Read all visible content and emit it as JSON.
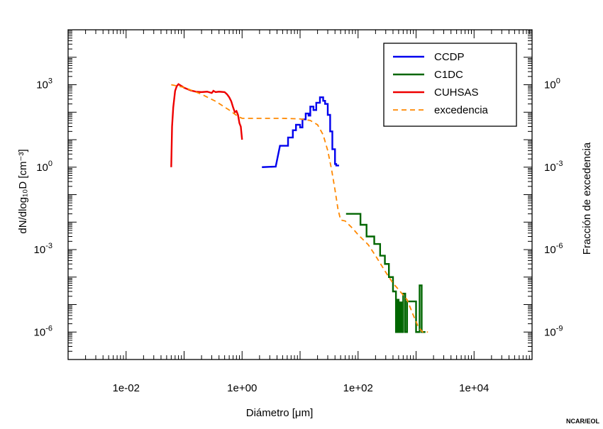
{
  "chart_data": {
    "type": "line",
    "xlabel": "Diámetro [μm]",
    "ylabel": "dN/dlog₁₀D [cm⁻³]",
    "y2label": "Fracción de excedencia",
    "credit": "NCAR/EOL",
    "x_scale": "log",
    "y_scale": "log",
    "y2_scale": "log",
    "xlim": [
      0.001,
      100000
    ],
    "ylim": [
      1e-07,
      100000
    ],
    "y2lim": [
      1e-10,
      100
    ],
    "x_ticks": [
      {
        "value": 0.01,
        "label": "1e-02"
      },
      {
        "value": 1,
        "label": "1e+00"
      },
      {
        "value": 100,
        "label": "1e+02"
      },
      {
        "value": 10000,
        "label": "1e+04"
      }
    ],
    "y_ticks": [
      {
        "base": "10",
        "exp": "3",
        "value": 1000
      },
      {
        "base": "10",
        "exp": "0",
        "value": 1
      },
      {
        "base": "10",
        "exp": "-3",
        "value": 0.001
      },
      {
        "base": "10",
        "exp": "-6",
        "value": 1e-06
      }
    ],
    "y2_ticks": [
      {
        "base": "10",
        "exp": "0",
        "value": 1
      },
      {
        "base": "10",
        "exp": "-3",
        "value": 0.001
      },
      {
        "base": "10",
        "exp": "-6",
        "value": 1e-06
      },
      {
        "base": "10",
        "exp": "-9",
        "value": 1e-09
      }
    ],
    "legend_position": "top-right",
    "series": [
      {
        "name": "CCDP",
        "color": "#0000ee",
        "axis": "left",
        "step": true,
        "points": [
          [
            2.2,
            1
          ],
          [
            3.8,
            1.05
          ],
          [
            4.5,
            6
          ],
          [
            6.2,
            6
          ],
          [
            6.2,
            12
          ],
          [
            7.5,
            12
          ],
          [
            7.5,
            22
          ],
          [
            8.5,
            22
          ],
          [
            8.5,
            35
          ],
          [
            10,
            35
          ],
          [
            10,
            28
          ],
          [
            11,
            28
          ],
          [
            11,
            55
          ],
          [
            12.5,
            55
          ],
          [
            12.5,
            90
          ],
          [
            14,
            90
          ],
          [
            14,
            75
          ],
          [
            15,
            75
          ],
          [
            15,
            160
          ],
          [
            17,
            160
          ],
          [
            17,
            120
          ],
          [
            19,
            120
          ],
          [
            19,
            220
          ],
          [
            22,
            220
          ],
          [
            22,
            350
          ],
          [
            25,
            350
          ],
          [
            25,
            260
          ],
          [
            27,
            260
          ],
          [
            27,
            200
          ],
          [
            30,
            200
          ],
          [
            30,
            80
          ],
          [
            33,
            80
          ],
          [
            33,
            20
          ],
          [
            36,
            20
          ],
          [
            36,
            4.5
          ],
          [
            40,
            4.5
          ],
          [
            40,
            1.3
          ],
          [
            42,
            1.3
          ],
          [
            42,
            1.15
          ],
          [
            47,
            1.15
          ]
        ]
      },
      {
        "name": "C1DC",
        "color": "#006600",
        "axis": "left",
        "step": true,
        "points": [
          [
            62,
            0.02
          ],
          [
            110,
            0.02
          ],
          [
            110,
            0.008
          ],
          [
            140,
            0.008
          ],
          [
            140,
            0.003
          ],
          [
            190,
            0.003
          ],
          [
            190,
            0.0016
          ],
          [
            240,
            0.0016
          ],
          [
            240,
            0.0006
          ],
          [
            290,
            0.0006
          ],
          [
            290,
            0.0003
          ],
          [
            340,
            0.0003
          ],
          [
            340,
            0.0001
          ],
          [
            400,
            0.0001
          ],
          [
            400,
            3e-05
          ],
          [
            450,
            3e-05
          ],
          [
            450,
            1e-06
          ],
          [
            470,
            1e-06
          ],
          [
            470,
            1.5e-05
          ],
          [
            500,
            1.5e-05
          ],
          [
            500,
            1e-06
          ],
          [
            530,
            1e-06
          ],
          [
            530,
            1.2e-05
          ],
          [
            560,
            1.2e-05
          ],
          [
            560,
            1e-06
          ],
          [
            600,
            1e-06
          ],
          [
            600,
            2.5e-05
          ],
          [
            650,
            2.5e-05
          ],
          [
            650,
            1e-06
          ],
          [
            700,
            1e-06
          ],
          [
            700,
            1.3e-05
          ],
          [
            1000,
            1.3e-05
          ],
          [
            1000,
            1e-06
          ],
          [
            1150,
            1e-06
          ],
          [
            1150,
            5e-05
          ],
          [
            1250,
            5e-05
          ],
          [
            1250,
            1e-06
          ],
          [
            1450,
            1e-06
          ]
        ]
      },
      {
        "name": "CUHSAS",
        "color": "#ee0000",
        "axis": "left",
        "step": false,
        "points": [
          [
            0.06,
            1
          ],
          [
            0.062,
            30
          ],
          [
            0.065,
            150
          ],
          [
            0.07,
            600
          ],
          [
            0.075,
            900
          ],
          [
            0.08,
            1050
          ],
          [
            0.09,
            900
          ],
          [
            0.1,
            780
          ],
          [
            0.13,
            620
          ],
          [
            0.16,
            560
          ],
          [
            0.2,
            540
          ],
          [
            0.25,
            560
          ],
          [
            0.3,
            500
          ],
          [
            0.32,
            600
          ],
          [
            0.35,
            540
          ],
          [
            0.4,
            560
          ],
          [
            0.5,
            540
          ],
          [
            0.55,
            450
          ],
          [
            0.6,
            350
          ],
          [
            0.65,
            250
          ],
          [
            0.7,
            150
          ],
          [
            0.75,
            100
          ],
          [
            0.8,
            110
          ],
          [
            0.85,
            80
          ],
          [
            0.9,
            40
          ],
          [
            0.95,
            30
          ],
          [
            1.0,
            10
          ]
        ]
      },
      {
        "name": "excedencia",
        "color": "#ff8800",
        "axis": "right",
        "dashed": true,
        "step": false,
        "points": [
          [
            0.06,
            1
          ],
          [
            0.1,
            0.8
          ],
          [
            0.2,
            0.45
          ],
          [
            0.35,
            0.25
          ],
          [
            0.6,
            0.12
          ],
          [
            0.85,
            0.07
          ],
          [
            1,
            0.06
          ],
          [
            2,
            0.06
          ],
          [
            5,
            0.06
          ],
          [
            10,
            0.057
          ],
          [
            15,
            0.05
          ],
          [
            20,
            0.035
          ],
          [
            25,
            0.015
          ],
          [
            30,
            0.004
          ],
          [
            35,
            0.0008
          ],
          [
            40,
            0.00015
          ],
          [
            45,
            3e-05
          ],
          [
            50,
            1.2e-05
          ],
          [
            60,
            1.1e-05
          ],
          [
            80,
            6e-06
          ],
          [
            100,
            3.5e-06
          ],
          [
            150,
            1.5e-06
          ],
          [
            200,
            6e-07
          ],
          [
            300,
            1.5e-07
          ],
          [
            400,
            6e-08
          ],
          [
            500,
            3.5e-08
          ],
          [
            700,
            1.5e-08
          ],
          [
            900,
            4e-09
          ],
          [
            1100,
            1.5e-09
          ],
          [
            1300,
            1e-09
          ],
          [
            1600,
            1e-09
          ]
        ]
      }
    ]
  }
}
